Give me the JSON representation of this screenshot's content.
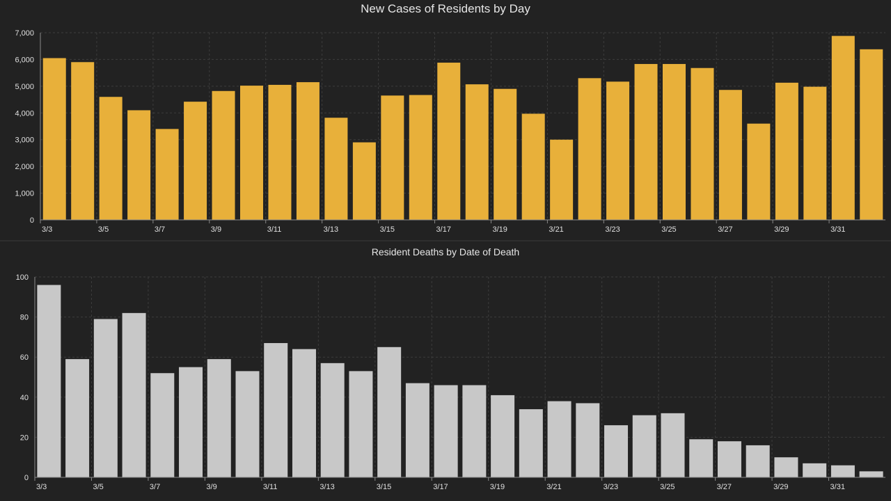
{
  "chart_data": [
    {
      "type": "bar",
      "title": "New Cases of Residents by Day",
      "xlabel": "",
      "ylabel": "",
      "ylim": [
        0,
        7000
      ],
      "yticks": [
        0,
        1000,
        2000,
        3000,
        4000,
        5000,
        6000,
        7000
      ],
      "ytick_labels": [
        "0",
        "1,000",
        "2,000",
        "3,000",
        "4,000",
        "5,000",
        "6,000",
        "7,000"
      ],
      "categories": [
        "3/3",
        "3/4",
        "3/5",
        "3/6",
        "3/7",
        "3/8",
        "3/9",
        "3/10",
        "3/11",
        "3/12",
        "3/13",
        "3/14",
        "3/15",
        "3/16",
        "3/17",
        "3/18",
        "3/19",
        "3/20",
        "3/21",
        "3/22",
        "3/23",
        "3/24",
        "3/25",
        "3/26",
        "3/27",
        "3/28",
        "3/29",
        "3/30",
        "3/31",
        "4/1"
      ],
      "xtick_labels": [
        "3/3",
        "3/5",
        "3/7",
        "3/9",
        "3/11",
        "3/13",
        "3/15",
        "3/17",
        "3/19",
        "3/21",
        "3/23",
        "3/25",
        "3/27",
        "3/29",
        "3/31"
      ],
      "values": [
        6050,
        5900,
        4600,
        4100,
        3400,
        4420,
        4820,
        5020,
        5050,
        5150,
        3820,
        2900,
        4650,
        4670,
        5880,
        5070,
        4900,
        3970,
        3000,
        5300,
        5170,
        5830,
        5830,
        5680,
        4860,
        3600,
        5130,
        4980,
        6880,
        6380
      ],
      "grid": true,
      "color": "#e8b03a"
    },
    {
      "type": "bar",
      "title": "Resident Deaths by Date of Death",
      "xlabel": "",
      "ylabel": "",
      "ylim": [
        0,
        100
      ],
      "yticks": [
        0,
        20,
        40,
        60,
        80,
        100
      ],
      "ytick_labels": [
        "0",
        "20",
        "40",
        "60",
        "80",
        "100"
      ],
      "categories": [
        "3/3",
        "3/4",
        "3/5",
        "3/6",
        "3/7",
        "3/8",
        "3/9",
        "3/10",
        "3/11",
        "3/12",
        "3/13",
        "3/14",
        "3/15",
        "3/16",
        "3/17",
        "3/18",
        "3/19",
        "3/20",
        "3/21",
        "3/22",
        "3/23",
        "3/24",
        "3/25",
        "3/26",
        "3/27",
        "3/28",
        "3/29",
        "3/30",
        "3/31",
        "4/1"
      ],
      "xtick_labels": [
        "3/3",
        "3/5",
        "3/7",
        "3/9",
        "3/11",
        "3/13",
        "3/15",
        "3/17",
        "3/19",
        "3/21",
        "3/23",
        "3/25",
        "3/27",
        "3/29",
        "3/31"
      ],
      "values": [
        96,
        59,
        79,
        82,
        52,
        55,
        59,
        53,
        67,
        64,
        57,
        53,
        65,
        47,
        46,
        46,
        41,
        34,
        38,
        37,
        26,
        31,
        32,
        19,
        18,
        16,
        10,
        7,
        6,
        3
      ],
      "grid": true,
      "color": "#c8c8c8"
    }
  ]
}
